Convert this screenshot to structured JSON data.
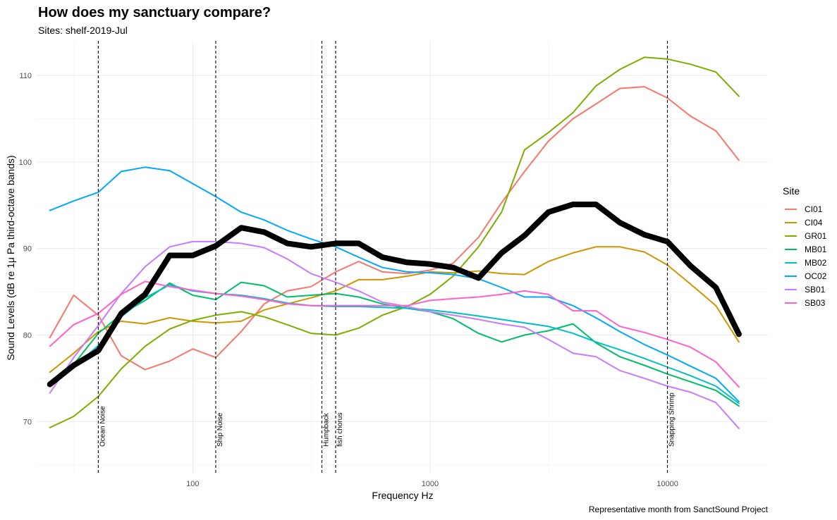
{
  "chart_data": {
    "type": "line",
    "title": "How does my sanctuary compare?",
    "subtitle": "Sites: shelf-2019-Jul",
    "caption": "Representative month from SanctSound Project",
    "xlabel": "Frequency Hz",
    "ylabel": "Sound Levels (dB re 1μ Pa third-octave bands)",
    "x_scale": "log10",
    "xlim": [
      22,
      26500
    ],
    "ylim": [
      64,
      114
    ],
    "x_ticks": [
      100,
      1000,
      10000
    ],
    "x_tick_labels": [
      "100",
      "1000",
      "10000"
    ],
    "y_ticks": [
      70,
      80,
      90,
      100,
      110
    ],
    "y_tick_labels": [
      "70",
      "80",
      "90",
      "100",
      "110"
    ],
    "grid": true,
    "legend": {
      "title": "Site",
      "position": "right"
    },
    "x": [
      25,
      31.5,
      40,
      50,
      63,
      80,
      100,
      125,
      160,
      200,
      250,
      315,
      400,
      500,
      630,
      800,
      1000,
      1250,
      1600,
      2000,
      2500,
      3150,
      4000,
      5000,
      6300,
      8000,
      10000,
      12500,
      16000,
      20000
    ],
    "series": [
      {
        "name": "CI01",
        "color": "#F8766D",
        "values": [
          79.7,
          84.6,
          82.3,
          77.6,
          76.0,
          77.0,
          78.4,
          77.4,
          80.4,
          83.6,
          85.1,
          85.6,
          87.3,
          88.5,
          87.3,
          87.1,
          87.5,
          88.3,
          91.3,
          95.3,
          98.9,
          102.4,
          105.0,
          106.7,
          108.5,
          108.7,
          107.4,
          105.3,
          103.6,
          100.2
        ]
      },
      {
        "name": "CI04",
        "color": "#CD9600",
        "values": [
          75.7,
          77.9,
          80.4,
          81.6,
          81.3,
          82.0,
          81.6,
          81.4,
          81.6,
          82.9,
          83.6,
          84.3,
          85.1,
          86.4,
          86.4,
          86.8,
          87.3,
          87.2,
          87.4,
          87.1,
          87.0,
          88.5,
          89.5,
          90.2,
          90.2,
          89.6,
          88.1,
          85.9,
          83.4,
          79.2
        ]
      },
      {
        "name": "GR01",
        "color": "#7CAE00",
        "values": [
          69.3,
          70.6,
          72.9,
          76.1,
          78.7,
          80.7,
          81.7,
          82.3,
          82.7,
          82.1,
          81.2,
          80.2,
          80.0,
          80.8,
          82.3,
          83.3,
          84.7,
          86.8,
          90.2,
          94.2,
          101.4,
          103.4,
          105.7,
          108.8,
          110.7,
          112.1,
          111.9,
          111.3,
          110.4,
          107.6
        ]
      },
      {
        "name": "MB01",
        "color": "#00BE67",
        "values": [
          74.1,
          76.6,
          80.2,
          82.4,
          84.0,
          86.0,
          84.6,
          84.1,
          86.1,
          85.7,
          84.4,
          84.6,
          84.8,
          84.4,
          83.6,
          83.1,
          82.7,
          81.9,
          80.2,
          79.2,
          80.0,
          80.5,
          81.3,
          79.1,
          77.5,
          76.5,
          75.5,
          74.6,
          73.6,
          71.8
        ]
      },
      {
        "name": "MB02",
        "color": "#00BFC4",
        "values": [
          74.2,
          76.3,
          78.8,
          82.1,
          84.3,
          85.8,
          85.1,
          84.8,
          84.6,
          84.2,
          83.7,
          83.4,
          83.3,
          83.3,
          83.2,
          83.1,
          82.9,
          82.6,
          82.2,
          81.8,
          81.4,
          81.0,
          80.2,
          79.2,
          78.3,
          77.3,
          76.3,
          75.3,
          74.1,
          72.1
        ]
      },
      {
        "name": "OC02",
        "color": "#00A9FF",
        "values": [
          94.4,
          95.5,
          96.5,
          98.9,
          99.4,
          99.0,
          97.5,
          96.0,
          94.2,
          93.3,
          92.1,
          91.1,
          90.2,
          89.0,
          87.8,
          87.3,
          87.2,
          87.0,
          86.5,
          85.5,
          84.4,
          84.4,
          83.4,
          82.0,
          80.4,
          78.9,
          77.7,
          76.4,
          75.0,
          72.3
        ]
      },
      {
        "name": "SB01",
        "color": "#C77CFF",
        "values": [
          73.3,
          77.4,
          81.1,
          84.8,
          87.9,
          90.2,
          90.8,
          90.8,
          90.6,
          90.1,
          88.8,
          87.1,
          86.1,
          85.1,
          83.8,
          83.3,
          82.7,
          82.3,
          81.8,
          81.3,
          80.9,
          79.5,
          77.9,
          77.5,
          75.9,
          75.0,
          74.1,
          73.4,
          72.2,
          69.2
        ]
      },
      {
        "name": "SB03",
        "color": "#FF61CC",
        "values": [
          78.7,
          81.2,
          82.5,
          84.7,
          86.2,
          85.6,
          85.2,
          84.8,
          84.5,
          84.1,
          83.6,
          83.4,
          83.4,
          83.4,
          83.4,
          83.4,
          84.0,
          84.2,
          84.4,
          84.7,
          85.1,
          84.7,
          82.8,
          82.8,
          81.0,
          80.3,
          79.5,
          78.6,
          76.9,
          74.0
        ]
      }
    ],
    "highlight": {
      "values": [
        74.3,
        76.5,
        78.2,
        82.5,
        84.7,
        89.2,
        89.2,
        90.3,
        92.4,
        91.9,
        90.6,
        90.2,
        90.6,
        90.6,
        89.0,
        88.4,
        88.2,
        87.8,
        86.6,
        89.5,
        91.5,
        94.2,
        95.1,
        95.1,
        93.0,
        91.6,
        90.8,
        88.0,
        85.5,
        80.1
      ]
    },
    "vlines": [
      {
        "x": 40,
        "label": "Ocean Noise"
      },
      {
        "x": 125,
        "label": "Ship Noise"
      },
      {
        "x": 350,
        "label": "Humpback"
      },
      {
        "x": 400,
        "label": "fish chorus"
      },
      {
        "x": 10000,
        "label": "Snapping Shrimp"
      }
    ]
  }
}
